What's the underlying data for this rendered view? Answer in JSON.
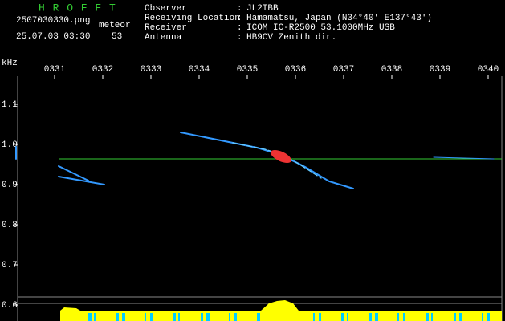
{
  "header": {
    "title": "H R O F F T",
    "file": "2507030330.png",
    "type_label": "meteor",
    "datetime": "25.07.03 03:30",
    "count": "53"
  },
  "separator": ":",
  "info": [
    {
      "label": "Observer",
      "value": "JL2TBB"
    },
    {
      "label": "Receiving Location",
      "value": "Hamamatsu, Japan (N34°40' E137°43')"
    },
    {
      "label": "Receiver",
      "value": "ICOM IC-R2500 53.1000MHz USB"
    },
    {
      "label": "Antenna",
      "value": "HB9CV Zenith dir."
    }
  ],
  "time_axis": [
    "0331",
    "0332",
    "0333",
    "0334",
    "0335",
    "0336",
    "0337",
    "0338",
    "0339",
    "0340"
  ],
  "freq_axis": {
    "unit": "kHz",
    "ticks": [
      "1.1",
      "1.0",
      "0.9",
      "0.8",
      "0.7",
      "0.6"
    ]
  }
}
